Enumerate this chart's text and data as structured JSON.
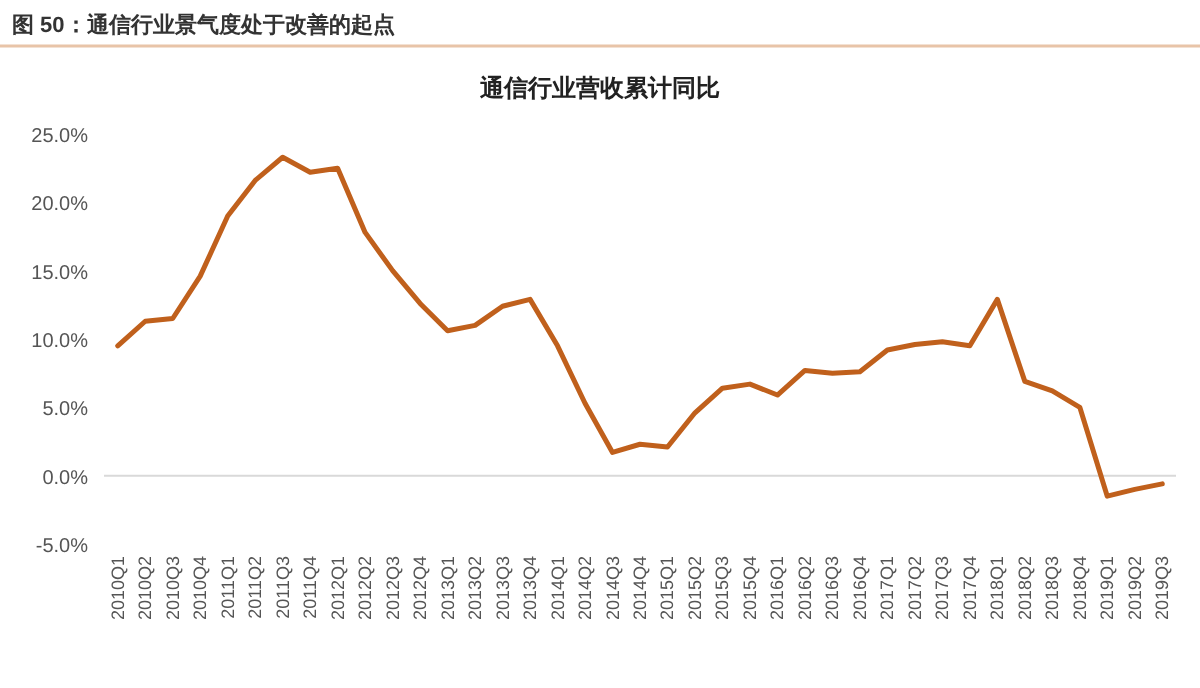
{
  "chart_data": {
    "type": "line",
    "title": "图 50：通信行业景气度处于改善的起点",
    "subtitle": "通信行业营收累计同比",
    "categories": [
      "2010Q1",
      "2010Q2",
      "2010Q3",
      "2010Q4",
      "2011Q1",
      "2011Q2",
      "2011Q3",
      "2011Q4",
      "2012Q1",
      "2012Q2",
      "2012Q3",
      "2012Q4",
      "2013Q1",
      "2013Q2",
      "2013Q3",
      "2013Q4",
      "2014Q1",
      "2014Q2",
      "2014Q3",
      "2014Q4",
      "2015Q1",
      "2015Q2",
      "2015Q3",
      "2015Q4",
      "2016Q1",
      "2016Q2",
      "2016Q3",
      "2016Q4",
      "2017Q1",
      "2017Q2",
      "2017Q3",
      "2017Q4",
      "2018Q1",
      "2018Q2",
      "2018Q3",
      "2018Q4",
      "2019Q1",
      "2019Q2",
      "2019Q3"
    ],
    "series": [
      {
        "color": "#c0601c",
        "values": [
          9.5,
          11.3,
          11.5,
          14.6,
          19.0,
          21.6,
          23.3,
          22.2,
          22.5,
          17.8,
          15.0,
          12.6,
          10.6,
          11.0,
          12.4,
          12.9,
          9.5,
          5.3,
          1.7,
          2.3,
          2.1,
          4.6,
          6.4,
          6.7,
          5.9,
          7.7,
          7.5,
          7.6,
          9.2,
          9.6,
          9.8,
          9.5,
          12.9,
          6.9,
          6.2,
          5.0,
          -1.5,
          -1.0,
          -0.6
        ]
      }
    ],
    "ylim": [
      -5,
      25
    ],
    "yticks": [
      {
        "value": -5,
        "label": "-5.0%"
      },
      {
        "value": 0,
        "label": "0.0%"
      },
      {
        "value": 5,
        "label": "5.0%"
      },
      {
        "value": 10,
        "label": "10.0%"
      },
      {
        "value": 15,
        "label": "15.0%"
      },
      {
        "value": 20,
        "label": "20.0%"
      },
      {
        "value": 25,
        "label": "25.0%"
      }
    ],
    "ref_lines": [
      {
        "axis": "y",
        "value": 0,
        "color": "#d9d9d9"
      }
    ],
    "grid": false,
    "marker": "none",
    "line_style": "solid"
  }
}
